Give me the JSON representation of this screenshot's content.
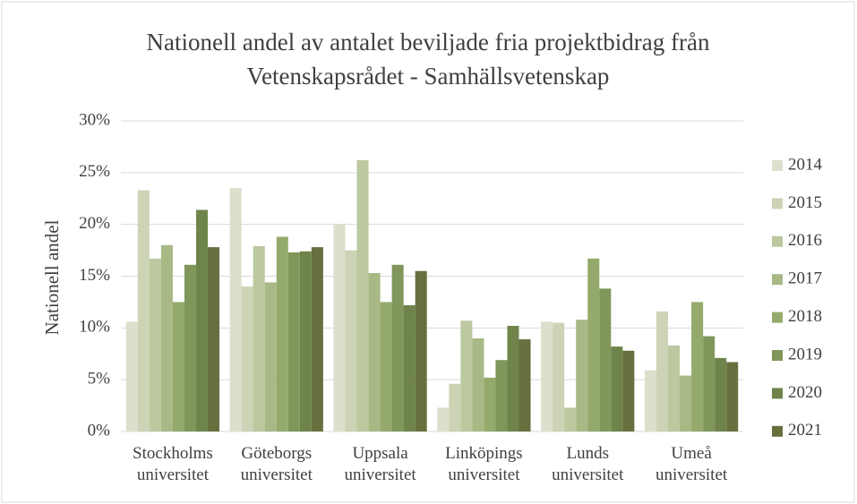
{
  "chart_data": {
    "type": "bar",
    "title": [
      "Nationell andel av antalet beviljade fria projektbidrag från",
      "Vetenskapsrådet - Samhällsvetenskap"
    ],
    "y_label": "Nationell andel",
    "categories": [
      "Stockholms universitet",
      "Göteborgs universitet",
      "Uppsala universitet",
      "Linköpings universitet",
      "Lunds universitet",
      "Umeå universitet"
    ],
    "series": [
      {
        "name": "2014",
        "color": "#dcdfcb",
        "values": [
          10.6,
          23.5,
          20.0,
          2.3,
          10.6,
          5.9
        ]
      },
      {
        "name": "2015",
        "color": "#cdd3b5",
        "values": [
          23.3,
          14.0,
          17.5,
          4.6,
          10.5,
          11.6
        ]
      },
      {
        "name": "2016",
        "color": "#bcc89f",
        "values": [
          16.7,
          17.9,
          26.2,
          10.7,
          2.3,
          8.3
        ]
      },
      {
        "name": "2017",
        "color": "#a9b985",
        "values": [
          18.0,
          14.4,
          15.3,
          9.0,
          10.8,
          5.4
        ]
      },
      {
        "name": "2018",
        "color": "#94aa6c",
        "values": [
          12.5,
          18.8,
          12.5,
          5.2,
          16.7,
          12.5
        ]
      },
      {
        "name": "2019",
        "color": "#80965a",
        "values": [
          16.1,
          17.3,
          16.1,
          6.9,
          13.8,
          9.2
        ]
      },
      {
        "name": "2020",
        "color": "#6f844b",
        "values": [
          21.4,
          17.4,
          12.2,
          10.2,
          8.2,
          7.1
        ]
      },
      {
        "name": "2021",
        "color": "#66703f",
        "values": [
          17.8,
          17.8,
          15.5,
          8.9,
          7.8,
          6.7
        ]
      }
    ],
    "ylim": [
      0,
      30
    ],
    "yticks": [
      {
        "value": 0,
        "label": "0%"
      },
      {
        "value": 5,
        "label": "5%"
      },
      {
        "value": 10,
        "label": "10%"
      },
      {
        "value": 15,
        "label": "15%"
      },
      {
        "value": 20,
        "label": "20%"
      },
      {
        "value": 25,
        "label": "25%"
      },
      {
        "value": 30,
        "label": "30%"
      }
    ],
    "grid": true,
    "legend": "right"
  }
}
